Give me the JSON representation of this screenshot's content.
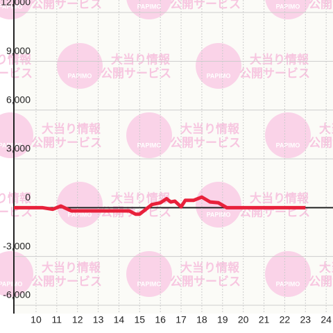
{
  "chart_data": {
    "type": "line",
    "watermark": {
      "brand": "PAPIMO",
      "line1": "大当り情報",
      "line2": "公開サービス"
    },
    "x": [
      8.93,
      10.3,
      10.8,
      11.2,
      11.7,
      14.5,
      14.8,
      15.0,
      15.6,
      16.0,
      16.3,
      16.5,
      16.7,
      17.0,
      17.2,
      17.6,
      18.0,
      18.4,
      18.8,
      19.2,
      23.0
    ],
    "series": [
      {
        "color": "#e8213b",
        "values": [
          0,
          0,
          -100,
          100,
          -200,
          -200,
          -400,
          -400,
          200,
          300,
          550,
          350,
          400,
          50,
          450,
          450,
          650,
          350,
          300,
          0,
          0
        ]
      }
    ],
    "xlim": [
      8.93,
      24.33
    ],
    "xticks": [
      10,
      11,
      12,
      13,
      14,
      15,
      16,
      17,
      18,
      19,
      20,
      21,
      22,
      23,
      24
    ],
    "ylim": [
      -6000,
      12000
    ],
    "yticks": [
      {
        "value": -6000,
        "label": "-6,000"
      },
      {
        "value": -3000,
        "label": "-3,000"
      },
      0,
      {
        "value": 3000,
        "label": "3,000"
      },
      {
        "value": 6000,
        "label": "6,000"
      },
      {
        "value": 9000,
        "label": "9,000"
      },
      {
        "value": 12000,
        "label": "12,000"
      }
    ],
    "grid": true
  }
}
